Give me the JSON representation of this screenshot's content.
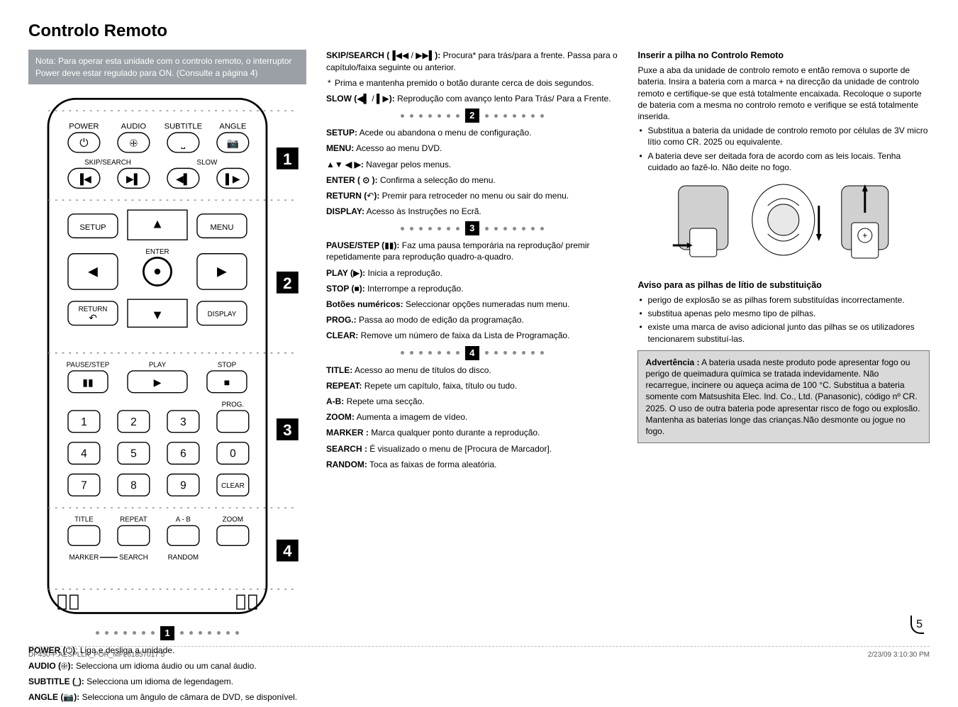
{
  "title": "Controlo Remoto",
  "noteBox": "Nota: Para operar esta unidade com o controlo remoto, o interruptor Power deve estar regulado para ON. (Consulte a página 4)",
  "remote": {
    "row1": [
      "POWER",
      "AUDIO",
      "SUBTITLE",
      "ANGLE"
    ],
    "row1sub": [
      "SKIP/SEARCH",
      "SLOW"
    ],
    "navTop": "▲",
    "navBottom": "▼",
    "navLeft": "◀",
    "navRight": "▶",
    "navBtns": {
      "setup": "SETUP",
      "menu": "MENU",
      "enter": "ENTER",
      "return": "RETURN",
      "display": "DISPLAY"
    },
    "row3labels": [
      "PAUSE/STEP",
      "PLAY",
      "STOP"
    ],
    "progLabel": "PROG.",
    "clearLabel": "CLEAR",
    "row4labels": [
      "TITLE",
      "REPEAT",
      "A - B",
      "ZOOM"
    ],
    "row4bLabels": [
      "MARKER",
      "SEARCH",
      "RANDOM"
    ],
    "sectionNums": [
      "1",
      "2",
      "3",
      "4"
    ]
  },
  "col1Entries": [
    {
      "b": "POWER (",
      "sym": "⏻",
      "b2": ")",
      "t": ": Liga e desliga a unidade."
    },
    {
      "b": "AUDIO (",
      "sym": "🕀",
      "b2": "):",
      "t": " Selecciona um idioma áudio ou um canal áudio."
    },
    {
      "b": "SUBTITLE (",
      "sym": "⎵",
      "b2": "):",
      "t": " Selecciona um idioma de legendagem."
    },
    {
      "b": "ANGLE (",
      "sym": "📷",
      "b2": "):",
      "t": " Selecciona um ângulo de câmara de DVD, se disponível."
    }
  ],
  "col2Top": [
    {
      "b": "SKIP/SEARCH (",
      "sym": "▐◀◀ / ▶▶▌",
      "b2": "):",
      "t": " Procura* para trás/para a frente. Passa para o capítulo/faixa seguinte ou anterior."
    }
  ],
  "col2Asterisk": "Prima e mantenha premido o botão durante cerca de dois segundos.",
  "col2Slow": {
    "b": "SLOW (",
    "sym": "◀▌ / ▌▶",
    "b2": "):",
    "t": " Reprodução com avanço lento Para Trás/ Para a Frente."
  },
  "section2": [
    {
      "b": "SETUP:",
      "t": " Acede ou abandona o menu de configuração."
    },
    {
      "b": "MENU:",
      "t": " Acesso ao menu DVD."
    },
    {
      "b": "▲▼ ◀ ▶:",
      "t": " Navegar pelos menus."
    },
    {
      "b": "ENTER ( ⊙ ):",
      "t": " Confirma a selecção do menu."
    },
    {
      "b": "RETURN (",
      "sym": "↶",
      "b2": "):",
      "t": " Premir para retroceder no menu ou sair do menu."
    },
    {
      "b": "DISPLAY:",
      "t": " Acesso às Instruções no Ecrã."
    }
  ],
  "section3": [
    {
      "b": "PAUSE/STEP (",
      "sym": "▮▮",
      "b2": "):",
      "t": " Faz uma pausa temporária na reprodução/ premir repetidamente para reprodução quadro-a-quadro."
    },
    {
      "b": "PLAY (",
      "sym": "▶",
      "b2": "):",
      "t": " Inicia a reprodução."
    },
    {
      "b": "STOP (",
      "sym": "■",
      "b2": "):",
      "t": " Interrompe a reprodução."
    },
    {
      "b": "Botões numéricos:",
      "t": " Seleccionar opções numeradas num menu."
    },
    {
      "b": "PROG.:",
      "t": " Passa ao modo de edição da programação."
    },
    {
      "b": "CLEAR:",
      "t": " Remove um número de faixa da Lista de Programação."
    }
  ],
  "section4": [
    {
      "b": "TITLE:",
      "t": " Acesso ao menu de títulos do disco."
    },
    {
      "b": "REPEAT:",
      "t": " Repete um capítulo, faixa, título ou tudo."
    },
    {
      "b": "A-B:",
      "t": " Repete uma secção."
    },
    {
      "b": "ZOOM:",
      "t": " Aumenta a imagem de vídeo."
    },
    {
      "b": "MARKER :",
      "t": " Marca qualquer ponto durante a reprodução."
    },
    {
      "b": "SEARCH :",
      "t": " É visualizado o menu de [Procura de Marcador]."
    },
    {
      "b": "RANDOM:",
      "t": " Toca as faixas de forma aleatória."
    }
  ],
  "col3": {
    "h1": "Inserir a pilha no Controlo Remoto",
    "p1": "Puxe a aba da unidade de controlo remoto e então remova o suporte de bateria. Insira a bateria com a marca + na direcção da unidade de controlo remoto e certifique-se que está totalmente encaixada. Recoloque o suporte de bateria com a mesma no controlo remoto e verifique se está totalmente inserida.",
    "bullets1": [
      "Substitua a bateria da unidade de controlo remoto por células de 3V micro lítio como CR. 2025 ou equivalente.",
      "A bateria deve ser deitada fora de acordo com as leis locais. Tenha cuidado ao fazê-lo. Não deite no fogo."
    ],
    "h2": "Aviso para as pilhas de lítio de substituição",
    "bullets2": [
      "perigo de explosão se as pilhas forem substituídas incorrectamente.",
      "substitua apenas pelo mesmo tipo de pilhas.",
      "existe uma marca de aviso adicional junto das pilhas se os utilizadores tencionarem substituí-las."
    ],
    "warning": "Advertência : A bateria usada neste produto pode apresentar fogo ou perigo de queimadura química se tratada indevidamente. Não recarregue, incinere ou aqueça acima de 100 °C. Substitua a bateria somente com Matsushita Elec. Ind. Co., Ltd. (Panasonic), código nº CR. 2025. O uso de outra bateria pode apresentar risco de fogo ou explosão. Mantenha as baterias longe das crianças.Não desmonte ou jogue no fogo.",
    "warningBold": "Advertência :"
  },
  "pageNum": "5",
  "footerLeft": "DP450-P.AESPLLK_POR_MFL61857017   5",
  "footerRight": "2/23/09   3:10:30 PM"
}
